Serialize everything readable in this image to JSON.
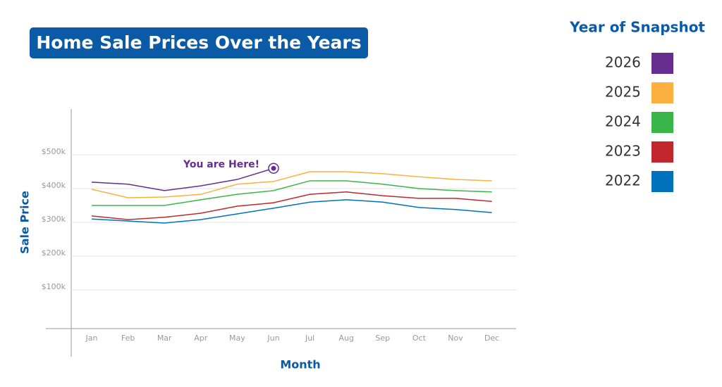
{
  "chart_data": {
    "type": "line",
    "title": "Home Sale Prices Over the Years",
    "x_label": "Month",
    "y_label": "Sale Price",
    "legend_title": "Year of Snapshot",
    "annotation": "You are Here!",
    "categories": [
      "Jan",
      "Feb",
      "Mar",
      "Apr",
      "May",
      "Jun",
      "Jul",
      "Aug",
      "Sep",
      "Oct",
      "Nov",
      "Dec"
    ],
    "ylim": [
      0,
      600000
    ],
    "yticks": [
      {
        "value": 100000,
        "label": "$100k"
      },
      {
        "value": 200000,
        "label": "$200k"
      },
      {
        "value": 300000,
        "label": "$300k"
      },
      {
        "value": 400000,
        "label": "$400k"
      },
      {
        "value": 500000,
        "label": "$500k"
      }
    ],
    "grid": true,
    "legend": "right",
    "series": [
      {
        "name": "2026",
        "color": "#662d91",
        "values": [
          419000,
          413000,
          394000,
          408000,
          427000,
          460000,
          null,
          null,
          null,
          null,
          null,
          null
        ]
      },
      {
        "name": "2025",
        "color": "#fbb040",
        "values": [
          398000,
          373000,
          375000,
          383000,
          413000,
          421000,
          450000,
          450000,
          444000,
          435000,
          427000,
          423000
        ]
      },
      {
        "name": "2024",
        "color": "#39b54a",
        "values": [
          350000,
          350000,
          350000,
          367000,
          383000,
          394000,
          423000,
          423000,
          413000,
          400000,
          394000,
          390000
        ]
      },
      {
        "name": "2023",
        "color": "#c1272d",
        "values": [
          319000,
          308000,
          315000,
          327000,
          348000,
          358000,
          383000,
          390000,
          379000,
          371000,
          371000,
          362000
        ]
      },
      {
        "name": "2022",
        "color": "#0071bc",
        "values": [
          310000,
          304000,
          298000,
          308000,
          325000,
          342000,
          360000,
          367000,
          360000,
          344000,
          338000,
          329000
        ]
      }
    ]
  }
}
